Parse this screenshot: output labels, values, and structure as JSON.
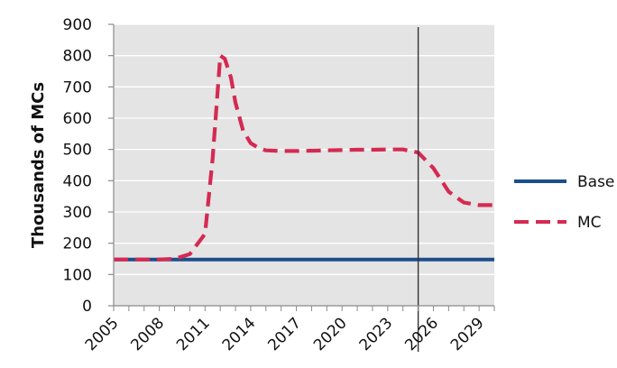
{
  "chart_data": {
    "type": "line",
    "title": "",
    "xlabel": "",
    "ylabel": "Thousands of MCs",
    "xlim": [
      2005,
      2030
    ],
    "ylim": [
      0,
      900
    ],
    "x_ticks": [
      2005,
      2008,
      2011,
      2014,
      2017,
      2020,
      2023,
      2026,
      2029
    ],
    "y_ticks": [
      0,
      100,
      200,
      300,
      400,
      500,
      600,
      700,
      800,
      900
    ],
    "grid": true,
    "legend_position": "right",
    "vertical_marker_x": 2025,
    "colors": {
      "plot_background": "#e4e4e4",
      "grid": "#ffffff"
    },
    "series": [
      {
        "name": "Base",
        "style": "solid",
        "color": "#1c4e8c",
        "x": [
          2005,
          2030
        ],
        "y": [
          148,
          148
        ]
      },
      {
        "name": "MC",
        "style": "dashed",
        "color": "#d42a52",
        "x": [
          2005,
          2006,
          2007,
          2008,
          2009,
          2010,
          2011,
          2011.5,
          2012,
          2012.3,
          2012.7,
          2013,
          2013.5,
          2014,
          2014.5,
          2015,
          2016,
          2017,
          2018,
          2019,
          2020,
          2021,
          2022,
          2023,
          2024,
          2025,
          2026,
          2027,
          2028,
          2029,
          2030
        ],
        "y": [
          148,
          148,
          148,
          148,
          150,
          165,
          230,
          470,
          800,
          790,
          730,
          650,
          560,
          520,
          505,
          497,
          495,
          495,
          496,
          497,
          498,
          499,
          499,
          500,
          500,
          490,
          440,
          365,
          330,
          322,
          322
        ]
      }
    ]
  }
}
